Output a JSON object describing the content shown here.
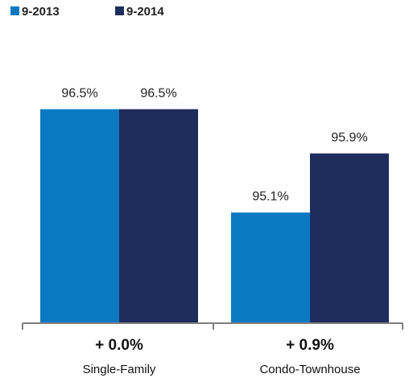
{
  "chart_data": {
    "type": "bar",
    "title": "",
    "xlabel": "",
    "ylabel": "",
    "categories": [
      "Single-Family",
      "Condo-Townhouse"
    ],
    "changes": [
      "+ 0.0%",
      "+ 0.9%"
    ],
    "series": [
      {
        "name": "9-2013",
        "color": "#0A79C2",
        "values": [
          96.5,
          95.1
        ],
        "labels": [
          "96.5%",
          "95.1%"
        ]
      },
      {
        "name": "9-2014",
        "color": "#1F2D5C",
        "values": [
          96.5,
          95.9
        ],
        "labels": [
          "96.5%",
          "95.9%"
        ]
      }
    ],
    "ylim": [
      93.6,
      96.8
    ],
    "grid": false,
    "legend": "top-left"
  }
}
